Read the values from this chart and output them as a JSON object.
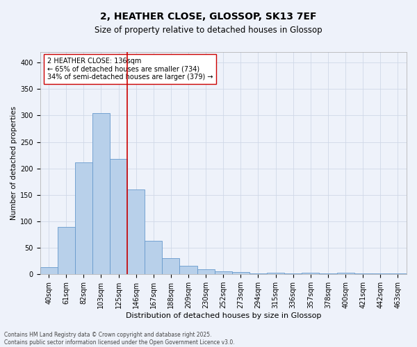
{
  "title1": "2, HEATHER CLOSE, GLOSSOP, SK13 7EF",
  "title2": "Size of property relative to detached houses in Glossop",
  "xlabel": "Distribution of detached houses by size in Glossop",
  "ylabel": "Number of detached properties",
  "bar_labels": [
    "40sqm",
    "61sqm",
    "82sqm",
    "103sqm",
    "125sqm",
    "146sqm",
    "167sqm",
    "188sqm",
    "209sqm",
    "230sqm",
    "252sqm",
    "273sqm",
    "294sqm",
    "315sqm",
    "336sqm",
    "357sqm",
    "378sqm",
    "400sqm",
    "421sqm",
    "442sqm",
    "463sqm"
  ],
  "bar_values": [
    14,
    90,
    212,
    305,
    218,
    160,
    63,
    30,
    16,
    9,
    5,
    4,
    1,
    3,
    2,
    3,
    1,
    3,
    1,
    1,
    2
  ],
  "bar_color": "#b8d0ea",
  "bar_edge_color": "#6699cc",
  "vline_x": 4.5,
  "vline_color": "#cc0000",
  "annotation_text": "2 HEATHER CLOSE: 136sqm\n← 65% of detached houses are smaller (734)\n34% of semi-detached houses are larger (379) →",
  "annotation_box_color": "#ffffff",
  "annotation_box_edge": "#cc0000",
  "grid_color": "#d0d8e8",
  "background_color": "#eef2fa",
  "footer": "Contains HM Land Registry data © Crown copyright and database right 2025.\nContains public sector information licensed under the Open Government Licence v3.0.",
  "ylim": [
    0,
    420
  ],
  "yticks": [
    0,
    50,
    100,
    150,
    200,
    250,
    300,
    350,
    400
  ],
  "title1_fontsize": 10,
  "title2_fontsize": 8.5,
  "xlabel_fontsize": 8,
  "ylabel_fontsize": 7.5,
  "tick_fontsize": 7,
  "annotation_fontsize": 7,
  "footer_fontsize": 5.5
}
